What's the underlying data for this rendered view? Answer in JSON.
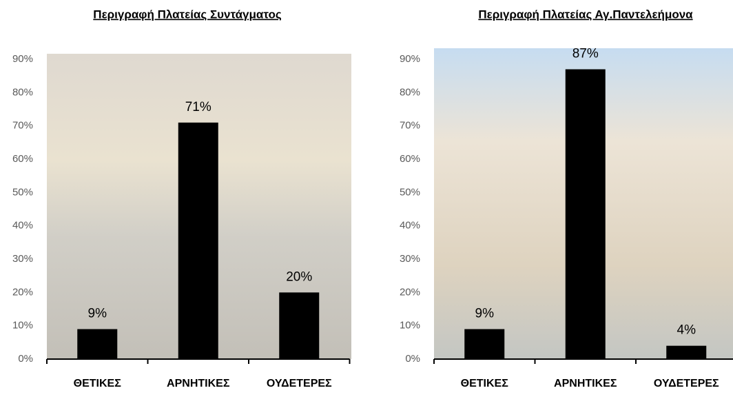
{
  "chart_data": [
    {
      "type": "bar",
      "title": "Περιγραφή Πλατείας Συντάγματος",
      "categories": [
        "ΘΕΤΙΚΕΣ",
        "ΑΡΝΗΤΙΚΕΣ",
        "ΟΥΔΕΤΕΡΕΣ"
      ],
      "values": [
        9,
        71,
        20
      ],
      "value_labels": [
        "9%",
        "71%",
        "20%"
      ],
      "color": "#000000",
      "ylim": [
        0,
        90
      ],
      "yticks": [
        {
          "value": 0,
          "label": "0%"
        },
        {
          "value": 10,
          "label": "10%"
        },
        {
          "value": 20,
          "label": "20%"
        },
        {
          "value": 30,
          "label": "30%"
        },
        {
          "value": 40,
          "label": "40%"
        },
        {
          "value": 50,
          "label": "50%"
        },
        {
          "value": 60,
          "label": "60%"
        },
        {
          "value": 70,
          "label": "70%"
        },
        {
          "value": 80,
          "label": "80%"
        },
        {
          "value": 90,
          "label": "90%"
        }
      ]
    },
    {
      "type": "bar",
      "title": "Περιγραφή Πλατείας Αγ.Παντελεήμονα",
      "categories": [
        "ΘΕΤΙΚΕΣ",
        "ΑΡΝΗΤΙΚΕΣ",
        "ΟΥΔΕΤΕΡΕΣ"
      ],
      "values": [
        9,
        87,
        4
      ],
      "value_labels": [
        "9%",
        "87%",
        "4%"
      ],
      "color": "#000000",
      "ylim": [
        0,
        90
      ],
      "yticks": [
        {
          "value": 0,
          "label": "0%"
        },
        {
          "value": 10,
          "label": "10%"
        },
        {
          "value": 20,
          "label": "20%"
        },
        {
          "value": 30,
          "label": "30%"
        },
        {
          "value": 40,
          "label": "40%"
        },
        {
          "value": 50,
          "label": "50%"
        },
        {
          "value": 60,
          "label": "60%"
        },
        {
          "value": 70,
          "label": "70%"
        },
        {
          "value": 80,
          "label": "80%"
        },
        {
          "value": 90,
          "label": "90%"
        }
      ]
    }
  ]
}
